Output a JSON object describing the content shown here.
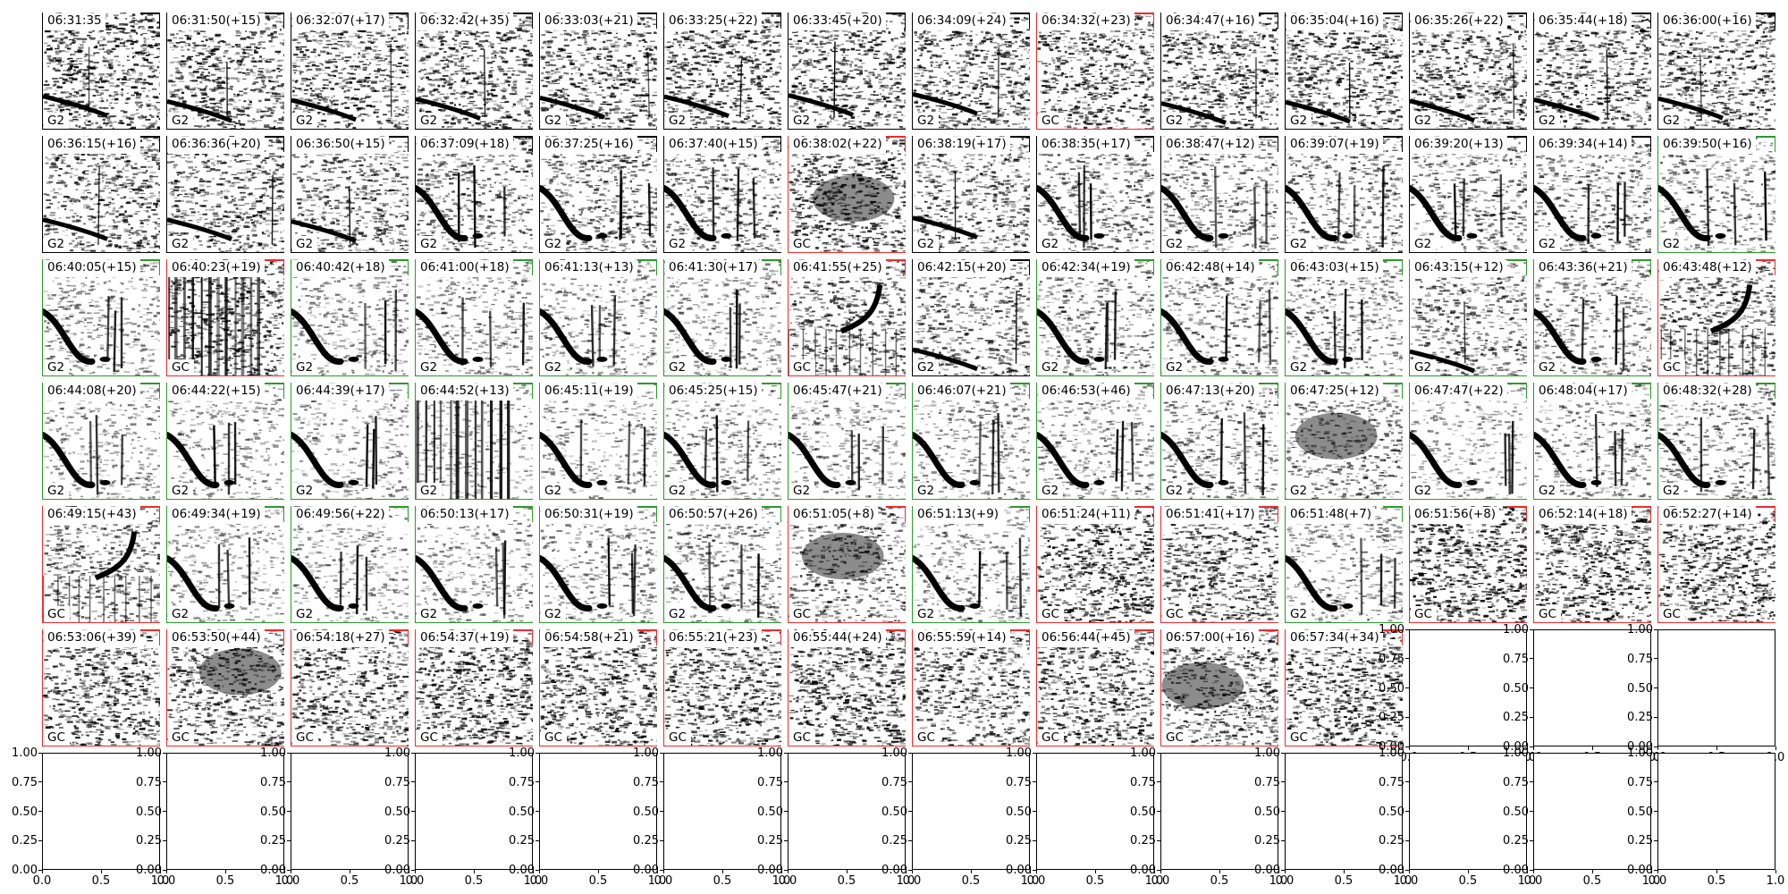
{
  "panels": [
    {
      "title": "06:31:35",
      "tag": "G2",
      "color": "black",
      "pattern": "noise-sweep",
      "density": 0.55
    },
    {
      "title": "06:31:50(+15)",
      "tag": "G2",
      "color": "black",
      "pattern": "noise-sweep",
      "density": 0.5
    },
    {
      "title": "06:32:07(+17)",
      "tag": "G2",
      "color": "black",
      "pattern": "noise-sweep",
      "density": 0.5
    },
    {
      "title": "06:32:42(+35)",
      "tag": "G2",
      "color": "black",
      "pattern": "noise-sweep",
      "density": 0.5
    },
    {
      "title": "06:33:03(+21)",
      "tag": "G2",
      "color": "black",
      "pattern": "noise-sweep",
      "density": 0.5
    },
    {
      "title": "06:33:25(+22)",
      "tag": "G2",
      "color": "black",
      "pattern": "noise-sweep",
      "density": 0.5
    },
    {
      "title": "06:33:45(+20)",
      "tag": "G2",
      "color": "black",
      "pattern": "noise-sweep",
      "density": 0.5
    },
    {
      "title": "06:34:09(+24)",
      "tag": "G2",
      "color": "black",
      "pattern": "noise-sweep",
      "density": 0.5
    },
    {
      "title": "06:34:32(+23)",
      "tag": "GC",
      "color": "red",
      "pattern": "noise",
      "density": 0.5
    },
    {
      "title": "06:34:47(+16)",
      "tag": "G2",
      "color": "black",
      "pattern": "noise-sweep",
      "density": 0.5
    },
    {
      "title": "06:35:04(+16)",
      "tag": "G2",
      "color": "black",
      "pattern": "noise-sweep",
      "density": 0.5
    },
    {
      "title": "06:35:26(+22)",
      "tag": "G2",
      "color": "black",
      "pattern": "noise-sweep",
      "density": 0.5
    },
    {
      "title": "06:35:44(+18)",
      "tag": "G2",
      "color": "black",
      "pattern": "noise-sweep",
      "density": 0.5
    },
    {
      "title": "06:36:00(+16)",
      "tag": "G2",
      "color": "black",
      "pattern": "noise-sweep",
      "density": 0.5
    },
    {
      "title": "06:36:15(+16)",
      "tag": "G2",
      "color": "black",
      "pattern": "noise-sweep",
      "density": 0.45
    },
    {
      "title": "06:36:36(+20)",
      "tag": "G2",
      "color": "black",
      "pattern": "noise-sweep",
      "density": 0.45
    },
    {
      "title": "06:36:50(+15)",
      "tag": "G2",
      "color": "black",
      "pattern": "noise-sweep",
      "density": 0.4
    },
    {
      "title": "06:37:09(+18)",
      "tag": "G2",
      "color": "black",
      "pattern": "call",
      "density": 0.35
    },
    {
      "title": "06:37:25(+16)",
      "tag": "G2",
      "color": "black",
      "pattern": "call",
      "density": 0.35
    },
    {
      "title": "06:37:40(+15)",
      "tag": "G2",
      "color": "black",
      "pattern": "call",
      "density": 0.35
    },
    {
      "title": "06:38:02(+22)",
      "tag": "GC",
      "color": "red",
      "pattern": "blob",
      "density": 0.5
    },
    {
      "title": "06:38:19(+17)",
      "tag": "G2",
      "color": "black",
      "pattern": "noise-sweep",
      "density": 0.4
    },
    {
      "title": "06:38:35(+17)",
      "tag": "G2",
      "color": "black",
      "pattern": "call",
      "density": 0.3
    },
    {
      "title": "06:38:47(+12)",
      "tag": "G2",
      "color": "black",
      "pattern": "call",
      "density": 0.3
    },
    {
      "title": "06:39:07(+19)",
      "tag": "G2",
      "color": "black",
      "pattern": "call",
      "density": 0.3
    },
    {
      "title": "06:39:20(+13)",
      "tag": "G2",
      "color": "black",
      "pattern": "call",
      "density": 0.3
    },
    {
      "title": "06:39:34(+14)",
      "tag": "G2",
      "color": "black",
      "pattern": "call",
      "density": 0.3
    },
    {
      "title": "06:39:50(+16)",
      "tag": "G2",
      "color": "green",
      "pattern": "call",
      "density": 0.25
    },
    {
      "title": "06:40:05(+15)",
      "tag": "G2",
      "color": "green",
      "pattern": "call",
      "density": 0.2
    },
    {
      "title": "06:40:23(+19)",
      "tag": "GC",
      "color": "red",
      "pattern": "bars",
      "density": 0.5
    },
    {
      "title": "06:40:42(+18)",
      "tag": "G2",
      "color": "green",
      "pattern": "call",
      "density": 0.2
    },
    {
      "title": "06:41:00(+18)",
      "tag": "G2",
      "color": "green",
      "pattern": "call",
      "density": 0.2
    },
    {
      "title": "06:41:13(+13)",
      "tag": "G2",
      "color": "green",
      "pattern": "call",
      "density": 0.2
    },
    {
      "title": "06:41:30(+17)",
      "tag": "G2",
      "color": "green",
      "pattern": "call",
      "density": 0.2
    },
    {
      "title": "06:41:55(+25)",
      "tag": "GC",
      "color": "red",
      "pattern": "upsweep",
      "density": 0.4
    },
    {
      "title": "06:42:15(+20)",
      "tag": "G2",
      "color": "black",
      "pattern": "noise-sweep",
      "density": 0.35
    },
    {
      "title": "06:42:34(+19)",
      "tag": "G2",
      "color": "green",
      "pattern": "call",
      "density": 0.25
    },
    {
      "title": "06:42:48(+14)",
      "tag": "G2",
      "color": "green",
      "pattern": "call",
      "density": 0.25
    },
    {
      "title": "06:43:03(+15)",
      "tag": "G2",
      "color": "green",
      "pattern": "call",
      "density": 0.25
    },
    {
      "title": "06:43:15(+12)",
      "tag": "G2",
      "color": "green",
      "pattern": "noise-sweep",
      "density": 0.35
    },
    {
      "title": "06:43:36(+21)",
      "tag": "G2",
      "color": "green",
      "pattern": "call",
      "density": 0.25
    },
    {
      "title": "06:43:48(+12)",
      "tag": "GC",
      "color": "red",
      "pattern": "upsweep",
      "density": 0.4
    },
    {
      "title": "06:44:08(+20)",
      "tag": "G2",
      "color": "green",
      "pattern": "call",
      "density": 0.15
    },
    {
      "title": "06:44:22(+15)",
      "tag": "G2",
      "color": "green",
      "pattern": "call",
      "density": 0.15
    },
    {
      "title": "06:44:39(+17)",
      "tag": "G2",
      "color": "green",
      "pattern": "call",
      "density": 0.15
    },
    {
      "title": "06:44:52(+13)",
      "tag": "G2",
      "color": "green",
      "pattern": "bars",
      "density": 0.15
    },
    {
      "title": "06:45:11(+19)",
      "tag": "G2",
      "color": "green",
      "pattern": "call",
      "density": 0.15
    },
    {
      "title": "06:45:25(+15)",
      "tag": "G2",
      "color": "green",
      "pattern": "call",
      "density": 0.2
    },
    {
      "title": "06:45:47(+21)",
      "tag": "G2",
      "color": "green",
      "pattern": "call",
      "density": 0.15
    },
    {
      "title": "06:46:07(+21)",
      "tag": "G2",
      "color": "green",
      "pattern": "call",
      "density": 0.2
    },
    {
      "title": "06:46:53(+46)",
      "tag": "G2",
      "color": "green",
      "pattern": "call",
      "density": 0.2
    },
    {
      "title": "06:47:13(+20)",
      "tag": "G2",
      "color": "green",
      "pattern": "call",
      "density": 0.25
    },
    {
      "title": "06:47:25(+12)",
      "tag": "G2",
      "color": "green",
      "pattern": "blob",
      "density": 0.3
    },
    {
      "title": "06:47:47(+22)",
      "tag": "G2",
      "color": "green",
      "pattern": "call",
      "density": 0.1
    },
    {
      "title": "06:48:04(+17)",
      "tag": "G2",
      "color": "green",
      "pattern": "call",
      "density": 0.2
    },
    {
      "title": "06:48:32(+28)",
      "tag": "G2",
      "color": "green",
      "pattern": "call",
      "density": 0.25
    },
    {
      "title": "06:49:15(+43)",
      "tag": "GC",
      "color": "red",
      "pattern": "upsweep",
      "density": 0.35
    },
    {
      "title": "06:49:34(+19)",
      "tag": "G2",
      "color": "green",
      "pattern": "call",
      "density": 0.15
    },
    {
      "title": "06:49:56(+22)",
      "tag": "G2",
      "color": "green",
      "pattern": "call",
      "density": 0.15
    },
    {
      "title": "06:50:13(+17)",
      "tag": "G2",
      "color": "green",
      "pattern": "call",
      "density": 0.15
    },
    {
      "title": "06:50:31(+19)",
      "tag": "G2",
      "color": "green",
      "pattern": "call",
      "density": 0.2
    },
    {
      "title": "06:50:57(+26)",
      "tag": "G2",
      "color": "green",
      "pattern": "call",
      "density": 0.25
    },
    {
      "title": "06:51:05(+8)",
      "tag": "GC",
      "color": "red",
      "pattern": "blob",
      "density": 0.35
    },
    {
      "title": "06:51:13(+9)",
      "tag": "G2",
      "color": "green",
      "pattern": "call",
      "density": 0.2
    },
    {
      "title": "06:51:24(+11)",
      "tag": "GC",
      "color": "red",
      "pattern": "noise",
      "density": 0.55
    },
    {
      "title": "06:51:41(+17)",
      "tag": "GC",
      "color": "red",
      "pattern": "noise",
      "density": 0.5
    },
    {
      "title": "06:51:48(+7)",
      "tag": "G2",
      "color": "green",
      "pattern": "call",
      "density": 0.2
    },
    {
      "title": "06:51:56(+8)",
      "tag": "GC",
      "color": "red",
      "pattern": "noise",
      "density": 0.6
    },
    {
      "title": "06:52:14(+18)",
      "tag": "GC",
      "color": "red",
      "pattern": "noise",
      "density": 0.55
    },
    {
      "title": "06:52:27(+14)",
      "tag": "GC",
      "color": "red",
      "pattern": "noise",
      "density": 0.55
    },
    {
      "title": "06:53:06(+39)",
      "tag": "GC",
      "color": "red",
      "pattern": "noise",
      "density": 0.5
    },
    {
      "title": "06:53:50(+44)",
      "tag": "GC",
      "color": "red",
      "pattern": "blob",
      "density": 0.45
    },
    {
      "title": "06:54:18(+27)",
      "tag": "GC",
      "color": "red",
      "pattern": "noise",
      "density": 0.5
    },
    {
      "title": "06:54:37(+19)",
      "tag": "GC",
      "color": "red",
      "pattern": "noise",
      "density": 0.55
    },
    {
      "title": "06:54:58(+21)",
      "tag": "GC",
      "color": "red",
      "pattern": "noise",
      "density": 0.5
    },
    {
      "title": "06:55:21(+23)",
      "tag": "GC",
      "color": "red",
      "pattern": "noise",
      "density": 0.5
    },
    {
      "title": "06:55:44(+24)",
      "tag": "GC",
      "color": "red",
      "pattern": "noise",
      "density": 0.55
    },
    {
      "title": "06:55:59(+14)",
      "tag": "GC",
      "color": "red",
      "pattern": "noise",
      "density": 0.45
    },
    {
      "title": "06:56:44(+45)",
      "tag": "GC",
      "color": "red",
      "pattern": "noise",
      "density": 0.5
    },
    {
      "title": "06:57:00(+16)",
      "tag": "GC",
      "color": "red",
      "pattern": "blob",
      "density": 0.45
    },
    {
      "title": "06:57:34(+34)",
      "tag": "GC",
      "color": "red",
      "pattern": "noise",
      "density": 0.55
    }
  ],
  "empty_axes": {
    "x_ticks": [
      "0.0",
      "0.5",
      "1.0"
    ],
    "y_ticks": [
      "0.00",
      "0.25",
      "0.50",
      "0.75",
      "1.00"
    ],
    "xlim": [
      0,
      1
    ],
    "ylim": [
      0,
      1
    ]
  },
  "colors": {
    "red": "#ee2b2b",
    "green": "#2a9a2a",
    "black": "#000000"
  },
  "chart_data": {
    "type": "heatmap",
    "title": "",
    "grid": false,
    "columns": 14,
    "rows": 7,
    "categories": [
      "06:31:35",
      "06:31:50(+15)",
      "06:32:07(+17)",
      "06:32:42(+35)",
      "06:33:03(+21)",
      "06:33:25(+22)",
      "06:33:45(+20)",
      "06:34:09(+24)",
      "06:34:32(+23)",
      "06:34:47(+16)",
      "06:35:04(+16)",
      "06:35:26(+22)",
      "06:35:44(+18)",
      "06:36:00(+16)",
      "06:36:15(+16)",
      "06:36:36(+20)",
      "06:36:50(+15)",
      "06:37:09(+18)",
      "06:37:25(+16)",
      "06:37:40(+15)",
      "06:38:02(+22)",
      "06:38:19(+17)",
      "06:38:35(+17)",
      "06:38:47(+12)",
      "06:39:07(+19)",
      "06:39:20(+13)",
      "06:39:34(+14)",
      "06:39:50(+16)",
      "06:40:05(+15)",
      "06:40:23(+19)",
      "06:40:42(+18)",
      "06:41:00(+18)",
      "06:41:13(+13)",
      "06:41:30(+17)",
      "06:41:55(+25)",
      "06:42:15(+20)",
      "06:42:34(+19)",
      "06:42:48(+14)",
      "06:43:03(+15)",
      "06:43:15(+12)",
      "06:43:36(+21)",
      "06:43:48(+12)",
      "06:44:08(+20)",
      "06:44:22(+15)",
      "06:44:39(+17)",
      "06:44:52(+13)",
      "06:45:11(+19)",
      "06:45:25(+15)",
      "06:45:47(+21)",
      "06:46:07(+21)",
      "06:46:53(+46)",
      "06:47:13(+20)",
      "06:47:25(+12)",
      "06:47:47(+22)",
      "06:48:04(+17)",
      "06:48:32(+28)",
      "06:49:15(+43)",
      "06:49:34(+19)",
      "06:49:56(+22)",
      "06:50:13(+17)",
      "06:50:31(+19)",
      "06:50:57(+26)",
      "06:51:05(+8)",
      "06:51:13(+9)",
      "06:51:24(+11)",
      "06:51:41(+17)",
      "06:51:48(+7)",
      "06:51:56(+8)",
      "06:52:14(+18)",
      "06:52:27(+14)",
      "06:53:06(+39)",
      "06:53:50(+44)",
      "06:54:18(+27)",
      "06:54:37(+19)",
      "06:54:58(+21)",
      "06:55:21(+23)",
      "06:55:44(+24)",
      "06:55:59(+14)",
      "06:56:44(+45)",
      "06:57:00(+16)",
      "06:57:34(+34)"
    ],
    "labels": [
      "G2",
      "G2",
      "G2",
      "G2",
      "G2",
      "G2",
      "G2",
      "G2",
      "GC",
      "G2",
      "G2",
      "G2",
      "G2",
      "G2",
      "G2",
      "G2",
      "G2",
      "G2",
      "G2",
      "G2",
      "GC",
      "G2",
      "G2",
      "G2",
      "G2",
      "G2",
      "G2",
      "G2",
      "G2",
      "GC",
      "G2",
      "G2",
      "G2",
      "G2",
      "GC",
      "G2",
      "G2",
      "G2",
      "G2",
      "G2",
      "G2",
      "GC",
      "G2",
      "G2",
      "G2",
      "G2",
      "G2",
      "G2",
      "G2",
      "G2",
      "G2",
      "G2",
      "G2",
      "G2",
      "G2",
      "G2",
      "GC",
      "G2",
      "G2",
      "G2",
      "G2",
      "G2",
      "GC",
      "G2",
      "GC",
      "GC",
      "G2",
      "GC",
      "GC",
      "GC",
      "GC",
      "GC",
      "GC",
      "GC",
      "GC",
      "GC",
      "GC",
      "GC",
      "GC",
      "GC",
      "GC"
    ],
    "empty_panels": 17,
    "empty_panel_xlim": [
      0,
      1
    ],
    "empty_panel_ylim": [
      0,
      1
    ]
  }
}
